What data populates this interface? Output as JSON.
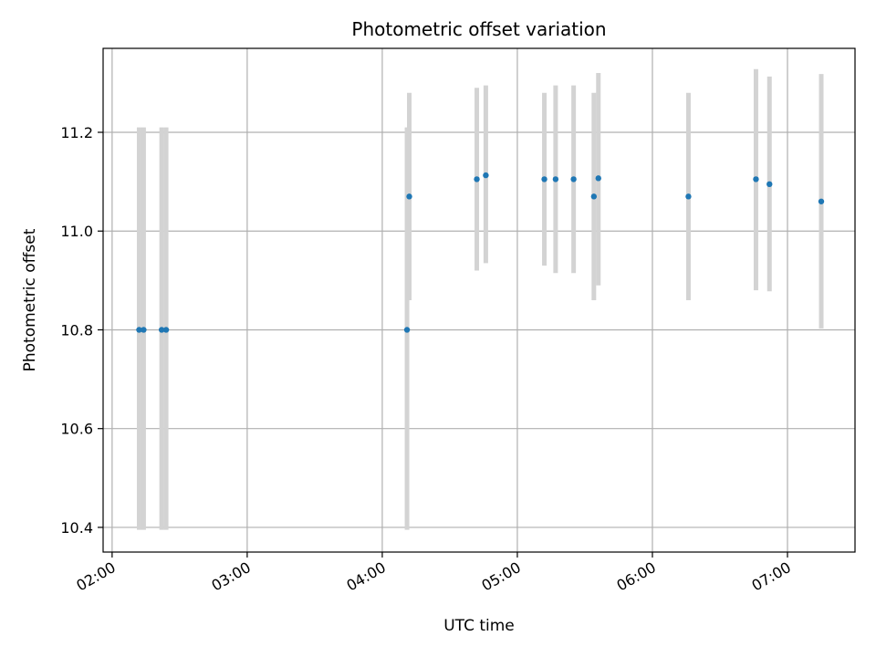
{
  "chart_data": {
    "type": "scatter",
    "title": "Photometric offset variation",
    "xlabel": "UTC time",
    "ylabel": "Photometric offset",
    "xlim": [
      "01:56",
      "07:30"
    ],
    "ylim": [
      10.35,
      11.37
    ],
    "x_ticks": [
      "02:00",
      "03:00",
      "04:00",
      "05:00",
      "06:00",
      "07:00"
    ],
    "y_ticks": [
      10.4,
      10.6,
      10.8,
      11.0,
      11.2
    ],
    "grid": true,
    "marker_color": "#1f77b4",
    "errorbar_color": "#d3d3d3",
    "points": [
      {
        "x": "02:12",
        "y": 10.8,
        "low": 10.395,
        "high": 11.21
      },
      {
        "x": "02:14",
        "y": 10.8,
        "low": 10.395,
        "high": 11.21
      },
      {
        "x": "02:22",
        "y": 10.8,
        "low": 10.395,
        "high": 11.21
      },
      {
        "x": "02:24",
        "y": 10.8,
        "low": 10.395,
        "high": 11.21
      },
      {
        "x": "04:11",
        "y": 10.8,
        "low": 10.395,
        "high": 11.21
      },
      {
        "x": "04:12",
        "y": 11.07,
        "low": 10.86,
        "high": 11.28
      },
      {
        "x": "04:42",
        "y": 11.105,
        "low": 10.92,
        "high": 11.29
      },
      {
        "x": "04:46",
        "y": 11.113,
        "low": 10.935,
        "high": 11.295
      },
      {
        "x": "05:12",
        "y": 11.105,
        "low": 10.93,
        "high": 11.28
      },
      {
        "x": "05:17",
        "y": 11.105,
        "low": 10.915,
        "high": 11.295
      },
      {
        "x": "05:25",
        "y": 11.105,
        "low": 10.915,
        "high": 11.295
      },
      {
        "x": "05:34",
        "y": 11.07,
        "low": 10.86,
        "high": 11.28
      },
      {
        "x": "05:36",
        "y": 11.107,
        "low": 10.89,
        "high": 11.32
      },
      {
        "x": "06:16",
        "y": 11.07,
        "low": 10.86,
        "high": 11.28
      },
      {
        "x": "06:46",
        "y": 11.105,
        "low": 10.88,
        "high": 11.328
      },
      {
        "x": "06:52",
        "y": 11.095,
        "low": 10.878,
        "high": 11.313
      },
      {
        "x": "07:15",
        "y": 11.06,
        "low": 10.803,
        "high": 11.318
      }
    ]
  }
}
